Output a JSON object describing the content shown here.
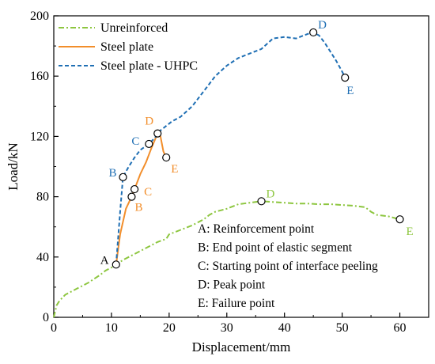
{
  "chart_data": {
    "type": "line",
    "xlabel": "Displacement/mm",
    "ylabel": "Load/kN",
    "xlim": [
      0,
      65
    ],
    "ylim": [
      0,
      200
    ],
    "xticks": [
      0,
      10,
      20,
      30,
      40,
      50,
      60
    ],
    "yticks": [
      0,
      40,
      80,
      120,
      160,
      200
    ],
    "xtick_labels": [
      "0",
      "10",
      "20",
      "30",
      "40",
      "50",
      "60"
    ],
    "ytick_labels": [
      "0",
      "40",
      "80",
      "120",
      "160",
      "200"
    ],
    "grid": false,
    "legend_position": "top-left",
    "series": [
      {
        "name": "Unreinforced",
        "color": "#8dc63f",
        "style": "dash-dot",
        "x": [
          0,
          0.5,
          1,
          2,
          3,
          4,
          5,
          6,
          7,
          8,
          9,
          10,
          10.8,
          12,
          14,
          16,
          18,
          19.5,
          20,
          22,
          24,
          26,
          27,
          28,
          30,
          32,
          34,
          36,
          38,
          40,
          42,
          44,
          46,
          48,
          50,
          52,
          54,
          55,
          56,
          58,
          60
        ],
        "y": [
          0,
          8,
          11,
          15,
          17,
          19,
          21,
          23,
          25.5,
          28,
          31,
          33,
          35,
          38,
          42,
          46,
          50,
          52,
          55,
          58,
          61,
          65,
          68,
          70,
          72,
          75,
          76,
          77,
          76.5,
          76,
          75.5,
          75.5,
          75,
          75,
          74.5,
          74,
          73,
          70,
          68,
          67,
          65
        ],
        "annotations": [
          {
            "label": "D",
            "x": 36,
            "y": 77
          },
          {
            "label": "E",
            "x": 60,
            "y": 65
          }
        ]
      },
      {
        "name": "Steel plate",
        "color": "#f28e2b",
        "style": "solid",
        "x": [
          10.8,
          11.5,
          12.5,
          13.5,
          14,
          15,
          16,
          17,
          18,
          18.5,
          19,
          19.5
        ],
        "y": [
          35,
          55,
          72,
          80,
          85,
          95,
          103,
          113,
          122,
          120,
          110,
          106
        ],
        "annotations": [
          {
            "label": "B",
            "x": 13.5,
            "y": 80
          },
          {
            "label": "C",
            "x": 14,
            "y": 85
          },
          {
            "label": "D",
            "x": 18,
            "y": 122
          },
          {
            "label": "E",
            "x": 19.5,
            "y": 106
          }
        ]
      },
      {
        "name": "Steel plate - UHPC",
        "color": "#1f6fb4",
        "style": "dash",
        "x": [
          10.8,
          11.5,
          12,
          13,
          14,
          15,
          16.5,
          17.5,
          18.5,
          19.5,
          20.5,
          22,
          24,
          26,
          28,
          30,
          32,
          34,
          36,
          38,
          40,
          42,
          44,
          45,
          46,
          47,
          48,
          49,
          50,
          50.5
        ],
        "y": [
          35,
          70,
          93,
          100,
          106,
          111,
          115,
          119,
          124,
          127,
          130,
          133,
          140,
          150,
          160,
          167,
          172,
          175,
          178,
          185,
          186,
          185,
          188,
          189,
          187,
          182,
          176,
          170,
          163,
          159
        ],
        "annotations": [
          {
            "label": "A",
            "x": 10.8,
            "y": 35
          },
          {
            "label": "B",
            "x": 12,
            "y": 93
          },
          {
            "label": "C",
            "x": 16.5,
            "y": 115
          },
          {
            "label": "D",
            "x": 45,
            "y": 189
          },
          {
            "label": "E",
            "x": 50.5,
            "y": 159
          }
        ]
      }
    ],
    "notes": [
      "A: Reinforcement point",
      "B: End point of elastic segment",
      "C: Starting point of interface peeling",
      "D: Peak point",
      "E: Failure point"
    ]
  }
}
